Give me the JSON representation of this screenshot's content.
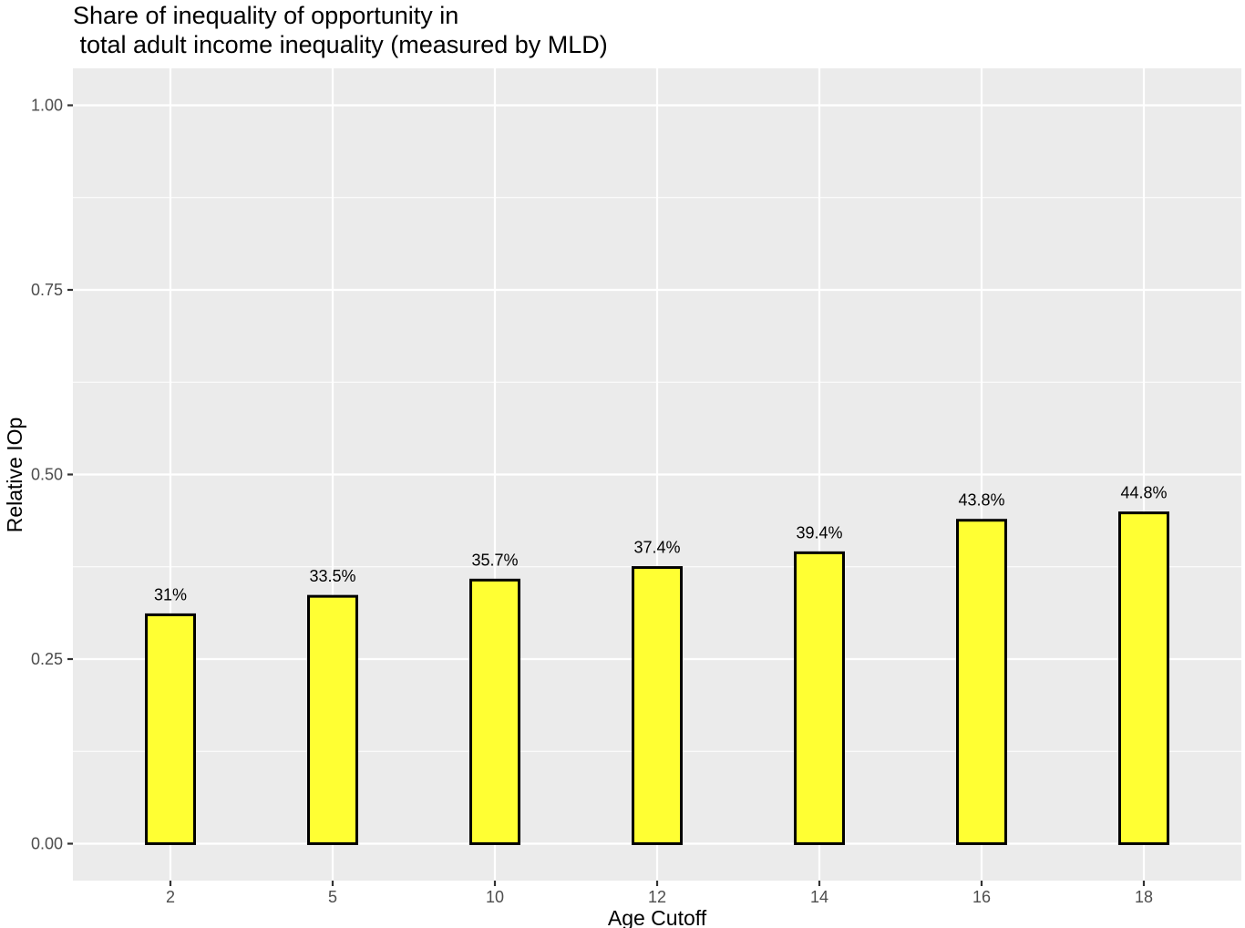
{
  "chart_data": {
    "type": "bar",
    "title": [
      "Share of inequality of opportunity in",
      " total adult income inequality (measured by MLD)"
    ],
    "xlabel": "Age Cutoff",
    "ylabel": "Relative IOp",
    "categories": [
      "2",
      "5",
      "10",
      "12",
      "14",
      "16",
      "18"
    ],
    "values": [
      0.31,
      0.335,
      0.357,
      0.374,
      0.394,
      0.438,
      0.448
    ],
    "data_labels": [
      "31%",
      "33.5%",
      "35.7%",
      "37.4%",
      "39.4%",
      "43.8%",
      "44.8%"
    ],
    "y_ticks": [
      0,
      0.25,
      0.5,
      0.75,
      1.0
    ],
    "y_tick_labels": [
      "0.00",
      "0.25",
      "0.50",
      "0.75",
      "1.00"
    ],
    "ylim": [
      -0.05,
      1.05
    ],
    "grid": true,
    "legend": "none",
    "colors": {
      "panel_background": "#ebebeb",
      "grid": "#ffffff",
      "bar_fill": "#ffff33",
      "bar_outline": "#000000",
      "tick_text": "#4d4d4d"
    }
  }
}
